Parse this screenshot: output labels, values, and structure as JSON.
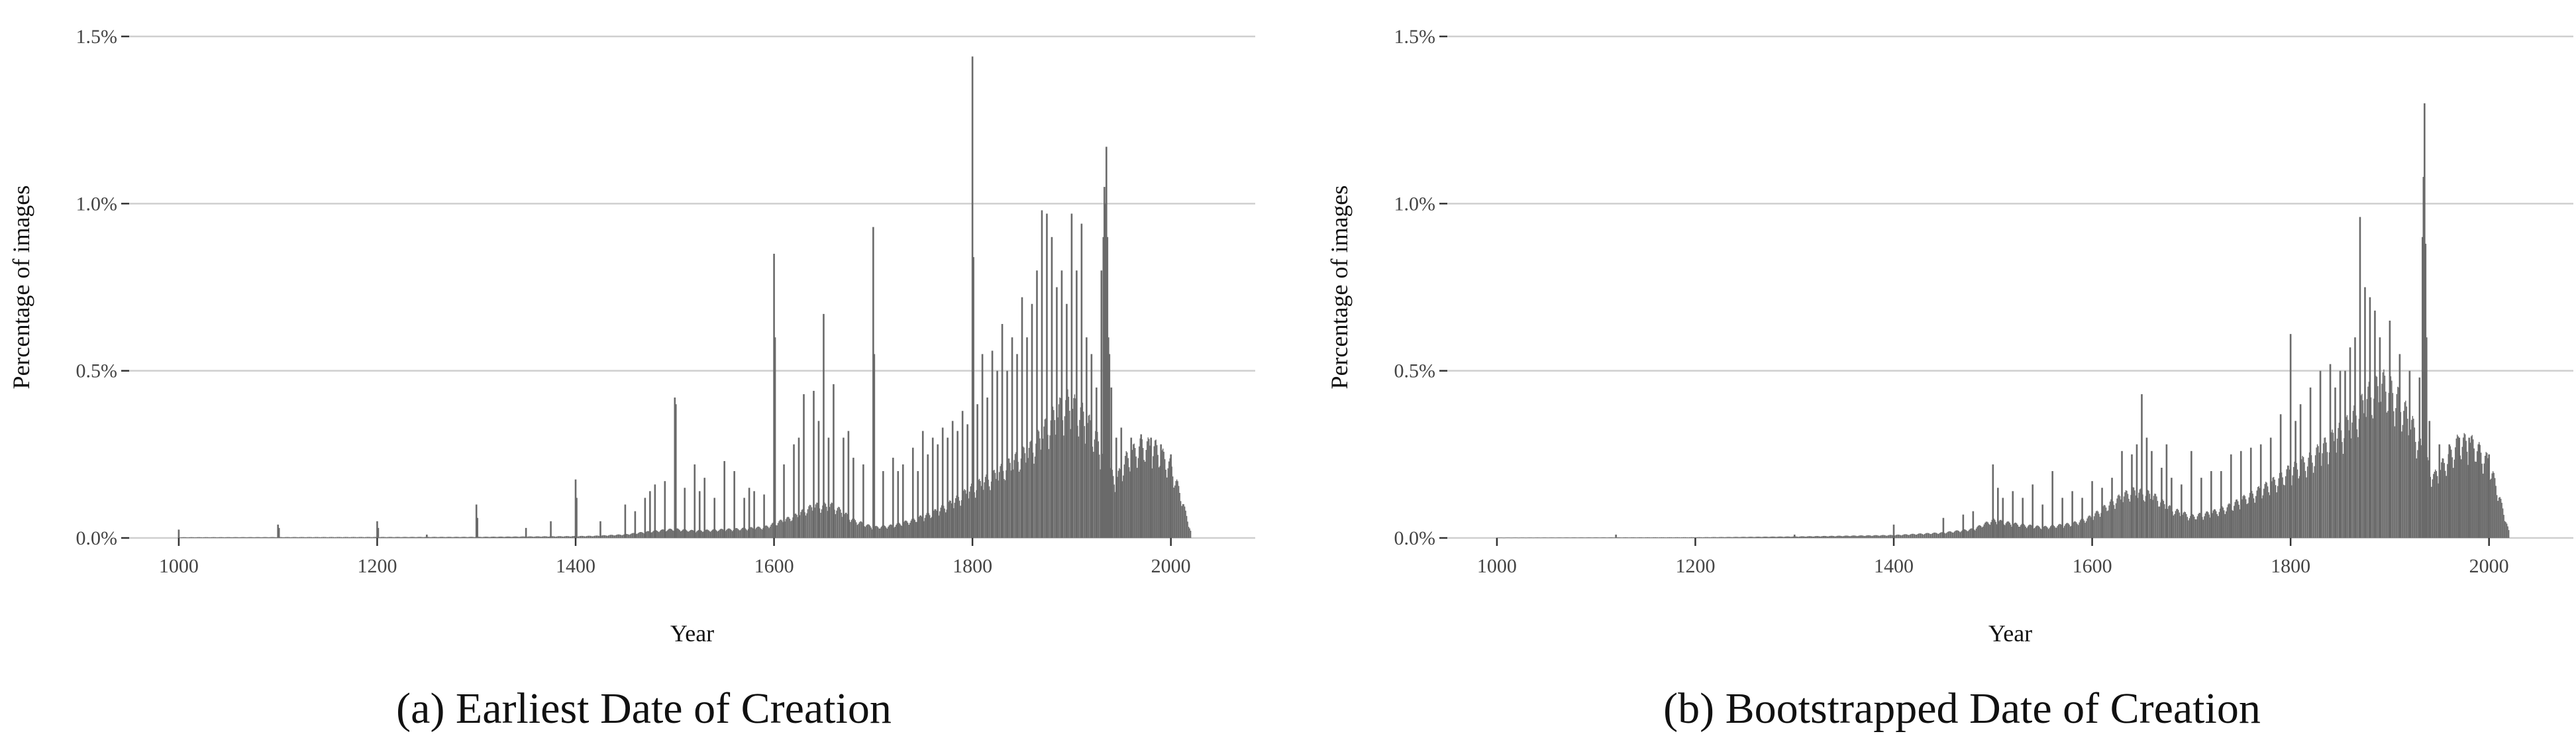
{
  "chart_data": [
    {
      "type": "bar",
      "caption": "(a) Earliest Date of Creation",
      "xlabel": "Year",
      "ylabel": "Percentage of images",
      "xlim": [
        950,
        2085
      ],
      "ylim": [
        0,
        1.5
      ],
      "x_ticks": [
        "1000",
        "1200",
        "1400",
        "1600",
        "1800",
        "2000"
      ],
      "y_ticks": [
        "0.0%",
        "0.5%",
        "1.0%",
        "1.5%"
      ],
      "grid": "horizontal major",
      "bar_color": "#666666",
      "baseline": [
        [
          1000,
          0.002
        ],
        [
          1300,
          0.003
        ],
        [
          1400,
          0.005
        ],
        [
          1420,
          0.006
        ],
        [
          1450,
          0.01
        ],
        [
          1480,
          0.02
        ],
        [
          1500,
          0.025
        ],
        [
          1520,
          0.02
        ],
        [
          1560,
          0.025
        ],
        [
          1590,
          0.03
        ],
        [
          1620,
          0.06
        ],
        [
          1640,
          0.09
        ],
        [
          1660,
          0.09
        ],
        [
          1680,
          0.05
        ],
        [
          1700,
          0.03
        ],
        [
          1720,
          0.035
        ],
        [
          1740,
          0.05
        ],
        [
          1760,
          0.07
        ],
        [
          1780,
          0.1
        ],
        [
          1800,
          0.14
        ],
        [
          1820,
          0.17
        ],
        [
          1840,
          0.21
        ],
        [
          1860,
          0.25
        ],
        [
          1880,
          0.33
        ],
        [
          1895,
          0.38
        ],
        [
          1910,
          0.35
        ],
        [
          1925,
          0.28
        ],
        [
          1935,
          0.2
        ],
        [
          1945,
          0.16
        ],
        [
          1955,
          0.22
        ],
        [
          1970,
          0.26
        ],
        [
          1985,
          0.25
        ],
        [
          2000,
          0.2
        ],
        [
          2010,
          0.12
        ],
        [
          2020,
          0.02
        ]
      ],
      "spikes": [
        [
          1000,
          0.025
        ],
        [
          1100,
          0.04
        ],
        [
          1101,
          0.03
        ],
        [
          1200,
          0.05
        ],
        [
          1201,
          0.03
        ],
        [
          1250,
          0.01
        ],
        [
          1300,
          0.1
        ],
        [
          1301,
          0.06
        ],
        [
          1350,
          0.03
        ],
        [
          1375,
          0.05
        ],
        [
          1400,
          0.175
        ],
        [
          1401,
          0.12
        ],
        [
          1425,
          0.05
        ],
        [
          1450,
          0.1
        ],
        [
          1460,
          0.08
        ],
        [
          1470,
          0.12
        ],
        [
          1475,
          0.14
        ],
        [
          1480,
          0.16
        ],
        [
          1490,
          0.17
        ],
        [
          1500,
          0.42
        ],
        [
          1501,
          0.4
        ],
        [
          1510,
          0.15
        ],
        [
          1520,
          0.22
        ],
        [
          1525,
          0.14
        ],
        [
          1530,
          0.18
        ],
        [
          1540,
          0.12
        ],
        [
          1550,
          0.23
        ],
        [
          1560,
          0.2
        ],
        [
          1570,
          0.12
        ],
        [
          1575,
          0.15
        ],
        [
          1580,
          0.14
        ],
        [
          1590,
          0.13
        ],
        [
          1600,
          0.85
        ],
        [
          1601,
          0.6
        ],
        [
          1610,
          0.22
        ],
        [
          1620,
          0.28
        ],
        [
          1625,
          0.3
        ],
        [
          1630,
          0.43
        ],
        [
          1640,
          0.44
        ],
        [
          1645,
          0.35
        ],
        [
          1650,
          0.67
        ],
        [
          1655,
          0.3
        ],
        [
          1660,
          0.46
        ],
        [
          1670,
          0.3
        ],
        [
          1675,
          0.32
        ],
        [
          1680,
          0.24
        ],
        [
          1690,
          0.22
        ],
        [
          1700,
          0.93
        ],
        [
          1701,
          0.55
        ],
        [
          1710,
          0.2
        ],
        [
          1720,
          0.24
        ],
        [
          1725,
          0.2
        ],
        [
          1730,
          0.22
        ],
        [
          1740,
          0.27
        ],
        [
          1745,
          0.2
        ],
        [
          1750,
          0.32
        ],
        [
          1755,
          0.25
        ],
        [
          1760,
          0.3
        ],
        [
          1765,
          0.28
        ],
        [
          1770,
          0.33
        ],
        [
          1775,
          0.3
        ],
        [
          1780,
          0.35
        ],
        [
          1785,
          0.32
        ],
        [
          1790,
          0.38
        ],
        [
          1795,
          0.34
        ],
        [
          1800,
          1.44
        ],
        [
          1801,
          0.84
        ],
        [
          1805,
          0.4
        ],
        [
          1810,
          0.55
        ],
        [
          1815,
          0.42
        ],
        [
          1820,
          0.56
        ],
        [
          1825,
          0.5
        ],
        [
          1830,
          0.64
        ],
        [
          1835,
          0.5
        ],
        [
          1840,
          0.6
        ],
        [
          1845,
          0.55
        ],
        [
          1850,
          0.72
        ],
        [
          1855,
          0.6
        ],
        [
          1860,
          0.7
        ],
        [
          1865,
          0.8
        ],
        [
          1870,
          0.98
        ],
        [
          1875,
          0.97
        ],
        [
          1880,
          0.9
        ],
        [
          1885,
          0.75
        ],
        [
          1890,
          0.8
        ],
        [
          1895,
          0.7
        ],
        [
          1900,
          0.97
        ],
        [
          1905,
          0.8
        ],
        [
          1910,
          0.94
        ],
        [
          1915,
          0.6
        ],
        [
          1920,
          0.55
        ],
        [
          1925,
          0.45
        ],
        [
          1930,
          0.8
        ],
        [
          1932,
          0.9
        ],
        [
          1933,
          1.05
        ],
        [
          1934,
          1.0
        ],
        [
          1935,
          1.17
        ],
        [
          1936,
          0.9
        ],
        [
          1937,
          0.6
        ],
        [
          1938,
          0.55
        ],
        [
          1940,
          0.45
        ],
        [
          1945,
          0.3
        ],
        [
          1950,
          0.33
        ],
        [
          1960,
          0.3
        ],
        [
          1970,
          0.31
        ],
        [
          1980,
          0.3
        ],
        [
          1990,
          0.28
        ],
        [
          2000,
          0.25
        ]
      ]
    },
    {
      "type": "bar",
      "caption": "(b) Bootstrapped Date of Creation",
      "xlabel": "Year",
      "ylabel": "Percentage of images",
      "xlim": [
        950,
        2085
      ],
      "ylim": [
        0,
        1.5
      ],
      "x_ticks": [
        "1000",
        "1200",
        "1400",
        "1600",
        "1800",
        "2000"
      ],
      "y_ticks": [
        "0.0%",
        "0.5%",
        "1.0%",
        "1.5%"
      ],
      "grid": "horizontal major",
      "bar_color": "#666666",
      "baseline": [
        [
          1000,
          0.001
        ],
        [
          1200,
          0.002
        ],
        [
          1300,
          0.004
        ],
        [
          1350,
          0.006
        ],
        [
          1400,
          0.008
        ],
        [
          1450,
          0.015
        ],
        [
          1480,
          0.025
        ],
        [
          1500,
          0.05
        ],
        [
          1520,
          0.04
        ],
        [
          1550,
          0.03
        ],
        [
          1580,
          0.04
        ],
        [
          1600,
          0.06
        ],
        [
          1620,
          0.1
        ],
        [
          1640,
          0.13
        ],
        [
          1660,
          0.12
        ],
        [
          1680,
          0.08
        ],
        [
          1700,
          0.06
        ],
        [
          1720,
          0.07
        ],
        [
          1740,
          0.09
        ],
        [
          1760,
          0.12
        ],
        [
          1780,
          0.15
        ],
        [
          1800,
          0.19
        ],
        [
          1820,
          0.22
        ],
        [
          1840,
          0.27
        ],
        [
          1860,
          0.32
        ],
        [
          1880,
          0.4
        ],
        [
          1895,
          0.43
        ],
        [
          1910,
          0.38
        ],
        [
          1925,
          0.3
        ],
        [
          1935,
          0.22
        ],
        [
          1945,
          0.17
        ],
        [
          1955,
          0.21
        ],
        [
          1970,
          0.27
        ],
        [
          1985,
          0.26
        ],
        [
          2000,
          0.21
        ],
        [
          2010,
          0.12
        ],
        [
          2020,
          0.02
        ]
      ],
      "spikes": [
        [
          1120,
          0.01
        ],
        [
          1300,
          0.01
        ],
        [
          1400,
          0.04
        ],
        [
          1450,
          0.06
        ],
        [
          1470,
          0.07
        ],
        [
          1480,
          0.08
        ],
        [
          1500,
          0.22
        ],
        [
          1505,
          0.15
        ],
        [
          1510,
          0.12
        ],
        [
          1520,
          0.14
        ],
        [
          1530,
          0.12
        ],
        [
          1540,
          0.16
        ],
        [
          1550,
          0.1
        ],
        [
          1560,
          0.2
        ],
        [
          1570,
          0.12
        ],
        [
          1580,
          0.14
        ],
        [
          1590,
          0.12
        ],
        [
          1600,
          0.17
        ],
        [
          1610,
          0.15
        ],
        [
          1620,
          0.18
        ],
        [
          1630,
          0.26
        ],
        [
          1640,
          0.25
        ],
        [
          1645,
          0.28
        ],
        [
          1650,
          0.43
        ],
        [
          1655,
          0.3
        ],
        [
          1660,
          0.26
        ],
        [
          1670,
          0.21
        ],
        [
          1675,
          0.28
        ],
        [
          1680,
          0.18
        ],
        [
          1690,
          0.16
        ],
        [
          1700,
          0.26
        ],
        [
          1710,
          0.18
        ],
        [
          1720,
          0.2
        ],
        [
          1730,
          0.2
        ],
        [
          1740,
          0.25
        ],
        [
          1750,
          0.26
        ],
        [
          1760,
          0.27
        ],
        [
          1770,
          0.28
        ],
        [
          1780,
          0.3
        ],
        [
          1790,
          0.37
        ],
        [
          1800,
          0.61
        ],
        [
          1805,
          0.35
        ],
        [
          1810,
          0.4
        ],
        [
          1820,
          0.45
        ],
        [
          1830,
          0.5
        ],
        [
          1840,
          0.52
        ],
        [
          1845,
          0.45
        ],
        [
          1850,
          0.5
        ],
        [
          1855,
          0.5
        ],
        [
          1860,
          0.57
        ],
        [
          1865,
          0.6
        ],
        [
          1870,
          0.96
        ],
        [
          1875,
          0.75
        ],
        [
          1880,
          0.72
        ],
        [
          1885,
          0.68
        ],
        [
          1890,
          0.6
        ],
        [
          1900,
          0.65
        ],
        [
          1910,
          0.55
        ],
        [
          1920,
          0.5
        ],
        [
          1930,
          0.48
        ],
        [
          1933,
          0.9
        ],
        [
          1934,
          1.08
        ],
        [
          1935,
          1.3
        ],
        [
          1936,
          0.88
        ],
        [
          1937,
          0.6
        ],
        [
          1940,
          0.35
        ],
        [
          1950,
          0.28
        ],
        [
          1960,
          0.28
        ],
        [
          1970,
          0.3
        ],
        [
          1980,
          0.3
        ],
        [
          1990,
          0.28
        ],
        [
          2000,
          0.25
        ]
      ]
    }
  ]
}
